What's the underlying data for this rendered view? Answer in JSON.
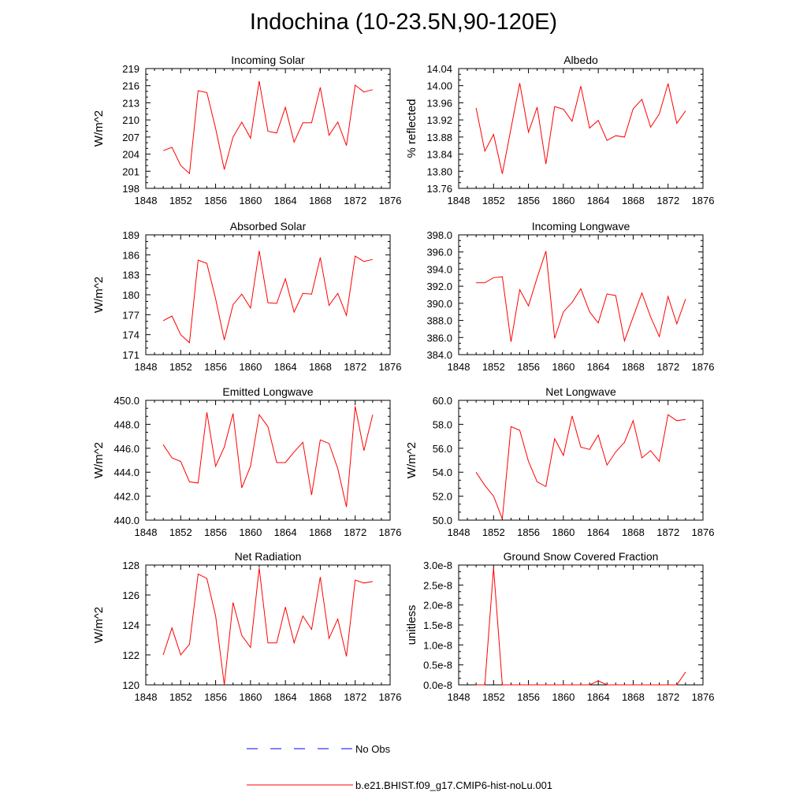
{
  "title": "Indochina (10-23.5N,90-120E)",
  "legend": [
    {
      "label": "No Obs",
      "color": "#0000ff",
      "style": "dashed"
    },
    {
      "label": "b.e21.BHIST.f09_g17.CMIP6-hist-noLu.001",
      "color": "#ff0000",
      "style": "solid"
    }
  ],
  "chart_data": [
    {
      "type": "line",
      "title": "Incoming Solar",
      "ylabel": "W/m^2",
      "xlabel": "",
      "xlim": [
        1848,
        1876
      ],
      "ylim": [
        198,
        219
      ],
      "xticks": [
        1848,
        1852,
        1856,
        1860,
        1864,
        1868,
        1872,
        1876
      ],
      "yticks": [
        "198",
        "201",
        "204",
        "207",
        "210",
        "213",
        "216",
        "219"
      ],
      "grid": false,
      "series": [
        {
          "color": "#ff0000",
          "x": [
            1850,
            1851,
            1852,
            1853,
            1854,
            1855,
            1856,
            1857,
            1858,
            1859,
            1860,
            1861,
            1862,
            1863,
            1864,
            1865,
            1866,
            1867,
            1868,
            1869,
            1870,
            1871,
            1872,
            1873,
            1874
          ],
          "y": [
            204.6,
            205.2,
            202.0,
            200.6,
            215.1,
            214.8,
            208.5,
            201.3,
            207.0,
            209.6,
            206.8,
            216.8,
            208.0,
            207.7,
            212.2,
            206.1,
            209.5,
            209.5,
            215.7,
            207.3,
            209.6,
            205.5,
            216.1,
            214.9,
            215.3
          ]
        }
      ]
    },
    {
      "type": "line",
      "title": "Albedo",
      "ylabel": "% reflected",
      "xlabel": "",
      "xlim": [
        1848,
        1876
      ],
      "ylim": [
        13.76,
        14.04
      ],
      "xticks": [
        1848,
        1852,
        1856,
        1860,
        1864,
        1868,
        1872,
        1876
      ],
      "yticks": [
        "13.76",
        "13.80",
        "13.84",
        "13.88",
        "13.92",
        "13.96",
        "14.00",
        "14.04"
      ],
      "grid": false,
      "series": [
        {
          "color": "#ff0000",
          "x": [
            1850,
            1851,
            1852,
            1853,
            1854,
            1855,
            1856,
            1857,
            1858,
            1859,
            1860,
            1861,
            1862,
            1863,
            1864,
            1865,
            1866,
            1867,
            1868,
            1869,
            1870,
            1871,
            1872,
            1873,
            1874
          ],
          "y": [
            13.948,
            13.847,
            13.886,
            13.794,
            13.9,
            14.006,
            13.891,
            13.95,
            13.817,
            13.951,
            13.945,
            13.917,
            13.999,
            13.901,
            13.919,
            13.872,
            13.883,
            13.88,
            13.946,
            13.968,
            13.903,
            13.934,
            14.005,
            13.912,
            13.941
          ]
        }
      ]
    },
    {
      "type": "line",
      "title": "Absorbed Solar",
      "ylabel": "W/m^2",
      "xlabel": "",
      "xlim": [
        1848,
        1876
      ],
      "ylim": [
        171,
        189
      ],
      "xticks": [
        1848,
        1852,
        1856,
        1860,
        1864,
        1868,
        1872,
        1876
      ],
      "yticks": [
        "171",
        "174",
        "177",
        "180",
        "183",
        "186",
        "189"
      ],
      "grid": false,
      "series": [
        {
          "color": "#ff0000",
          "x": [
            1850,
            1851,
            1852,
            1853,
            1854,
            1855,
            1856,
            1857,
            1858,
            1859,
            1860,
            1861,
            1862,
            1863,
            1864,
            1865,
            1866,
            1867,
            1868,
            1869,
            1870,
            1871,
            1872,
            1873,
            1874
          ],
          "y": [
            176.1,
            176.8,
            174.0,
            172.8,
            185.2,
            184.7,
            179.4,
            173.2,
            178.5,
            180.1,
            178.0,
            186.6,
            178.8,
            178.7,
            182.4,
            177.4,
            180.2,
            180.1,
            185.6,
            178.4,
            180.2,
            176.9,
            185.8,
            185.0,
            185.3
          ]
        }
      ]
    },
    {
      "type": "line",
      "title": "Incoming Longwave",
      "ylabel": "",
      "xlabel": "",
      "xlim": [
        1848,
        1876
      ],
      "ylim": [
        384.0,
        398.0
      ],
      "xticks": [
        1848,
        1852,
        1856,
        1860,
        1864,
        1868,
        1872,
        1876
      ],
      "yticks": [
        "384.0",
        "386.0",
        "388.0",
        "390.0",
        "392.0",
        "394.0",
        "396.0",
        "398.0"
      ],
      "grid": false,
      "series": [
        {
          "color": "#ff0000",
          "x": [
            1850,
            1851,
            1852,
            1853,
            1854,
            1855,
            1856,
            1857,
            1858,
            1859,
            1860,
            1861,
            1862,
            1863,
            1864,
            1865,
            1866,
            1867,
            1868,
            1869,
            1870,
            1871,
            1872,
            1873,
            1874
          ],
          "y": [
            392.4,
            392.4,
            393.0,
            393.1,
            385.5,
            391.6,
            389.7,
            393.0,
            396.1,
            385.9,
            389.0,
            390.1,
            391.7,
            389.0,
            387.7,
            391.1,
            390.9,
            385.6,
            388.4,
            391.2,
            388.4,
            386.1,
            390.8,
            387.6,
            390.5
          ]
        }
      ]
    },
    {
      "type": "line",
      "title": "Emitted Longwave",
      "ylabel": "W/m^2",
      "xlabel": "",
      "xlim": [
        1848,
        1876
      ],
      "ylim": [
        440.0,
        450.0
      ],
      "xticks": [
        1848,
        1852,
        1856,
        1860,
        1864,
        1868,
        1872,
        1876
      ],
      "yticks": [
        "440.0",
        "442.0",
        "444.0",
        "446.0",
        "448.0",
        "450.0"
      ],
      "grid": false,
      "series": [
        {
          "color": "#ff0000",
          "x": [
            1850,
            1851,
            1852,
            1853,
            1854,
            1855,
            1856,
            1857,
            1858,
            1859,
            1860,
            1861,
            1862,
            1863,
            1864,
            1865,
            1866,
            1867,
            1868,
            1869,
            1870,
            1871,
            1872,
            1873,
            1874
          ],
          "y": [
            446.3,
            445.2,
            444.9,
            443.2,
            443.1,
            449.0,
            444.5,
            446.1,
            448.9,
            442.7,
            444.5,
            448.8,
            447.8,
            444.8,
            444.8,
            445.7,
            446.5,
            442.1,
            446.7,
            446.4,
            444.3,
            441.1,
            449.5,
            445.8,
            448.8
          ]
        }
      ]
    },
    {
      "type": "line",
      "title": "Net Longwave",
      "ylabel": "W/m^2",
      "xlabel": "",
      "xlim": [
        1848,
        1876
      ],
      "ylim": [
        50.0,
        60.0
      ],
      "xticks": [
        1848,
        1852,
        1856,
        1860,
        1864,
        1868,
        1872,
        1876
      ],
      "yticks": [
        "50.0",
        "52.0",
        "54.0",
        "56.0",
        "58.0",
        "60.0"
      ],
      "grid": false,
      "series": [
        {
          "color": "#ff0000",
          "x": [
            1850,
            1851,
            1852,
            1853,
            1854,
            1855,
            1856,
            1857,
            1858,
            1859,
            1860,
            1861,
            1862,
            1863,
            1864,
            1865,
            1866,
            1867,
            1868,
            1869,
            1870,
            1871,
            1872,
            1873,
            1874
          ],
          "y": [
            54.0,
            52.9,
            52.0,
            50.1,
            57.8,
            57.5,
            54.9,
            53.2,
            52.8,
            56.8,
            55.4,
            58.7,
            56.1,
            55.9,
            57.1,
            54.6,
            55.7,
            56.5,
            58.3,
            55.2,
            55.8,
            54.9,
            58.8,
            58.3,
            58.4
          ]
        }
      ]
    },
    {
      "type": "line",
      "title": "Net Radiation",
      "ylabel": "W/m^2",
      "xlabel": "",
      "xlim": [
        1848,
        1876
      ],
      "ylim": [
        120,
        128
      ],
      "xticks": [
        1848,
        1852,
        1856,
        1860,
        1864,
        1868,
        1872,
        1876
      ],
      "yticks": [
        "120",
        "122",
        "124",
        "126",
        "128"
      ],
      "grid": false,
      "series": [
        {
          "color": "#ff0000",
          "x": [
            1850,
            1851,
            1852,
            1853,
            1854,
            1855,
            1856,
            1857,
            1858,
            1859,
            1860,
            1861,
            1862,
            1863,
            1864,
            1865,
            1866,
            1867,
            1868,
            1869,
            1870,
            1871,
            1872,
            1873,
            1874
          ],
          "y": [
            122.0,
            123.8,
            122.0,
            122.7,
            127.4,
            127.1,
            124.6,
            120.0,
            125.5,
            123.3,
            122.5,
            127.8,
            122.8,
            122.8,
            125.2,
            122.8,
            124.6,
            123.7,
            127.2,
            123.1,
            124.4,
            121.9,
            127.0,
            126.8,
            126.9
          ]
        }
      ]
    },
    {
      "type": "line",
      "title": "Ground Snow Covered Fraction",
      "ylabel": "unitless",
      "xlabel": "",
      "xlim": [
        1848,
        1876
      ],
      "ylim": [
        0,
        3e-08
      ],
      "xticks": [
        1848,
        1852,
        1856,
        1860,
        1864,
        1868,
        1872,
        1876
      ],
      "yticks": [
        "0.0e-8",
        "0.5e-8",
        "1.0e-8",
        "1.5e-8",
        "2.0e-8",
        "2.5e-8",
        "3.0e-8"
      ],
      "grid": false,
      "series": [
        {
          "color": "#ff0000",
          "x": [
            1850,
            1851,
            1852,
            1853,
            1854,
            1855,
            1856,
            1857,
            1858,
            1859,
            1860,
            1861,
            1862,
            1863,
            1864,
            1865,
            1866,
            1867,
            1868,
            1869,
            1870,
            1871,
            1872,
            1873,
            1874
          ],
          "y": [
            0,
            0,
            2.93e-08,
            0,
            0,
            0,
            0,
            0,
            0,
            0,
            0,
            0,
            0,
            0,
            1e-09,
            0,
            0,
            0,
            0,
            0,
            0,
            0,
            0,
            0,
            3.2e-09
          ]
        }
      ]
    }
  ]
}
